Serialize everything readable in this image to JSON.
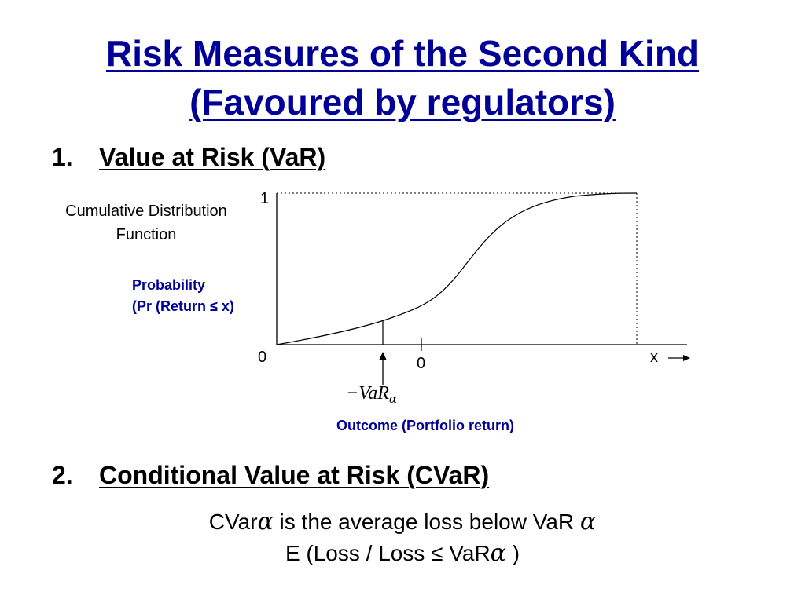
{
  "slide": {
    "title_line1": "Risk Measures of the Second Kind",
    "title_line2": "(Favoured by regulators)",
    "title_color": "#000099",
    "section1": {
      "number": "1.",
      "label": "Value at Risk (VaR)"
    },
    "section2": {
      "number": "2.",
      "label": "Conditional Value at Risk (CVaR)"
    }
  },
  "diagram": {
    "left_label_line1": "Cumulative Distribution",
    "left_label_line2": "Function",
    "y_label_line1": "Probability",
    "y_label_line2": "(Pr (Return ≤ x)",
    "y_top_tick": "1",
    "y_origin_tick": "0",
    "zero_tick": "0",
    "x_axis_label": "x",
    "var_marker": {
      "minus": "−",
      "text": "VaR",
      "sub": "α"
    },
    "x_caption": "Outcome (Portfolio return)",
    "label_color": "#000099"
  },
  "cvar": {
    "line1_prefix": "CVar",
    "line1_greek": "α",
    "line1_middle": " is the average loss below VaR ",
    "line1_greek2": "α",
    "line2_prefix": "E (Loss / Loss ≤ VaR",
    "line2_greek": "α",
    "line2_suffix": " )"
  }
}
